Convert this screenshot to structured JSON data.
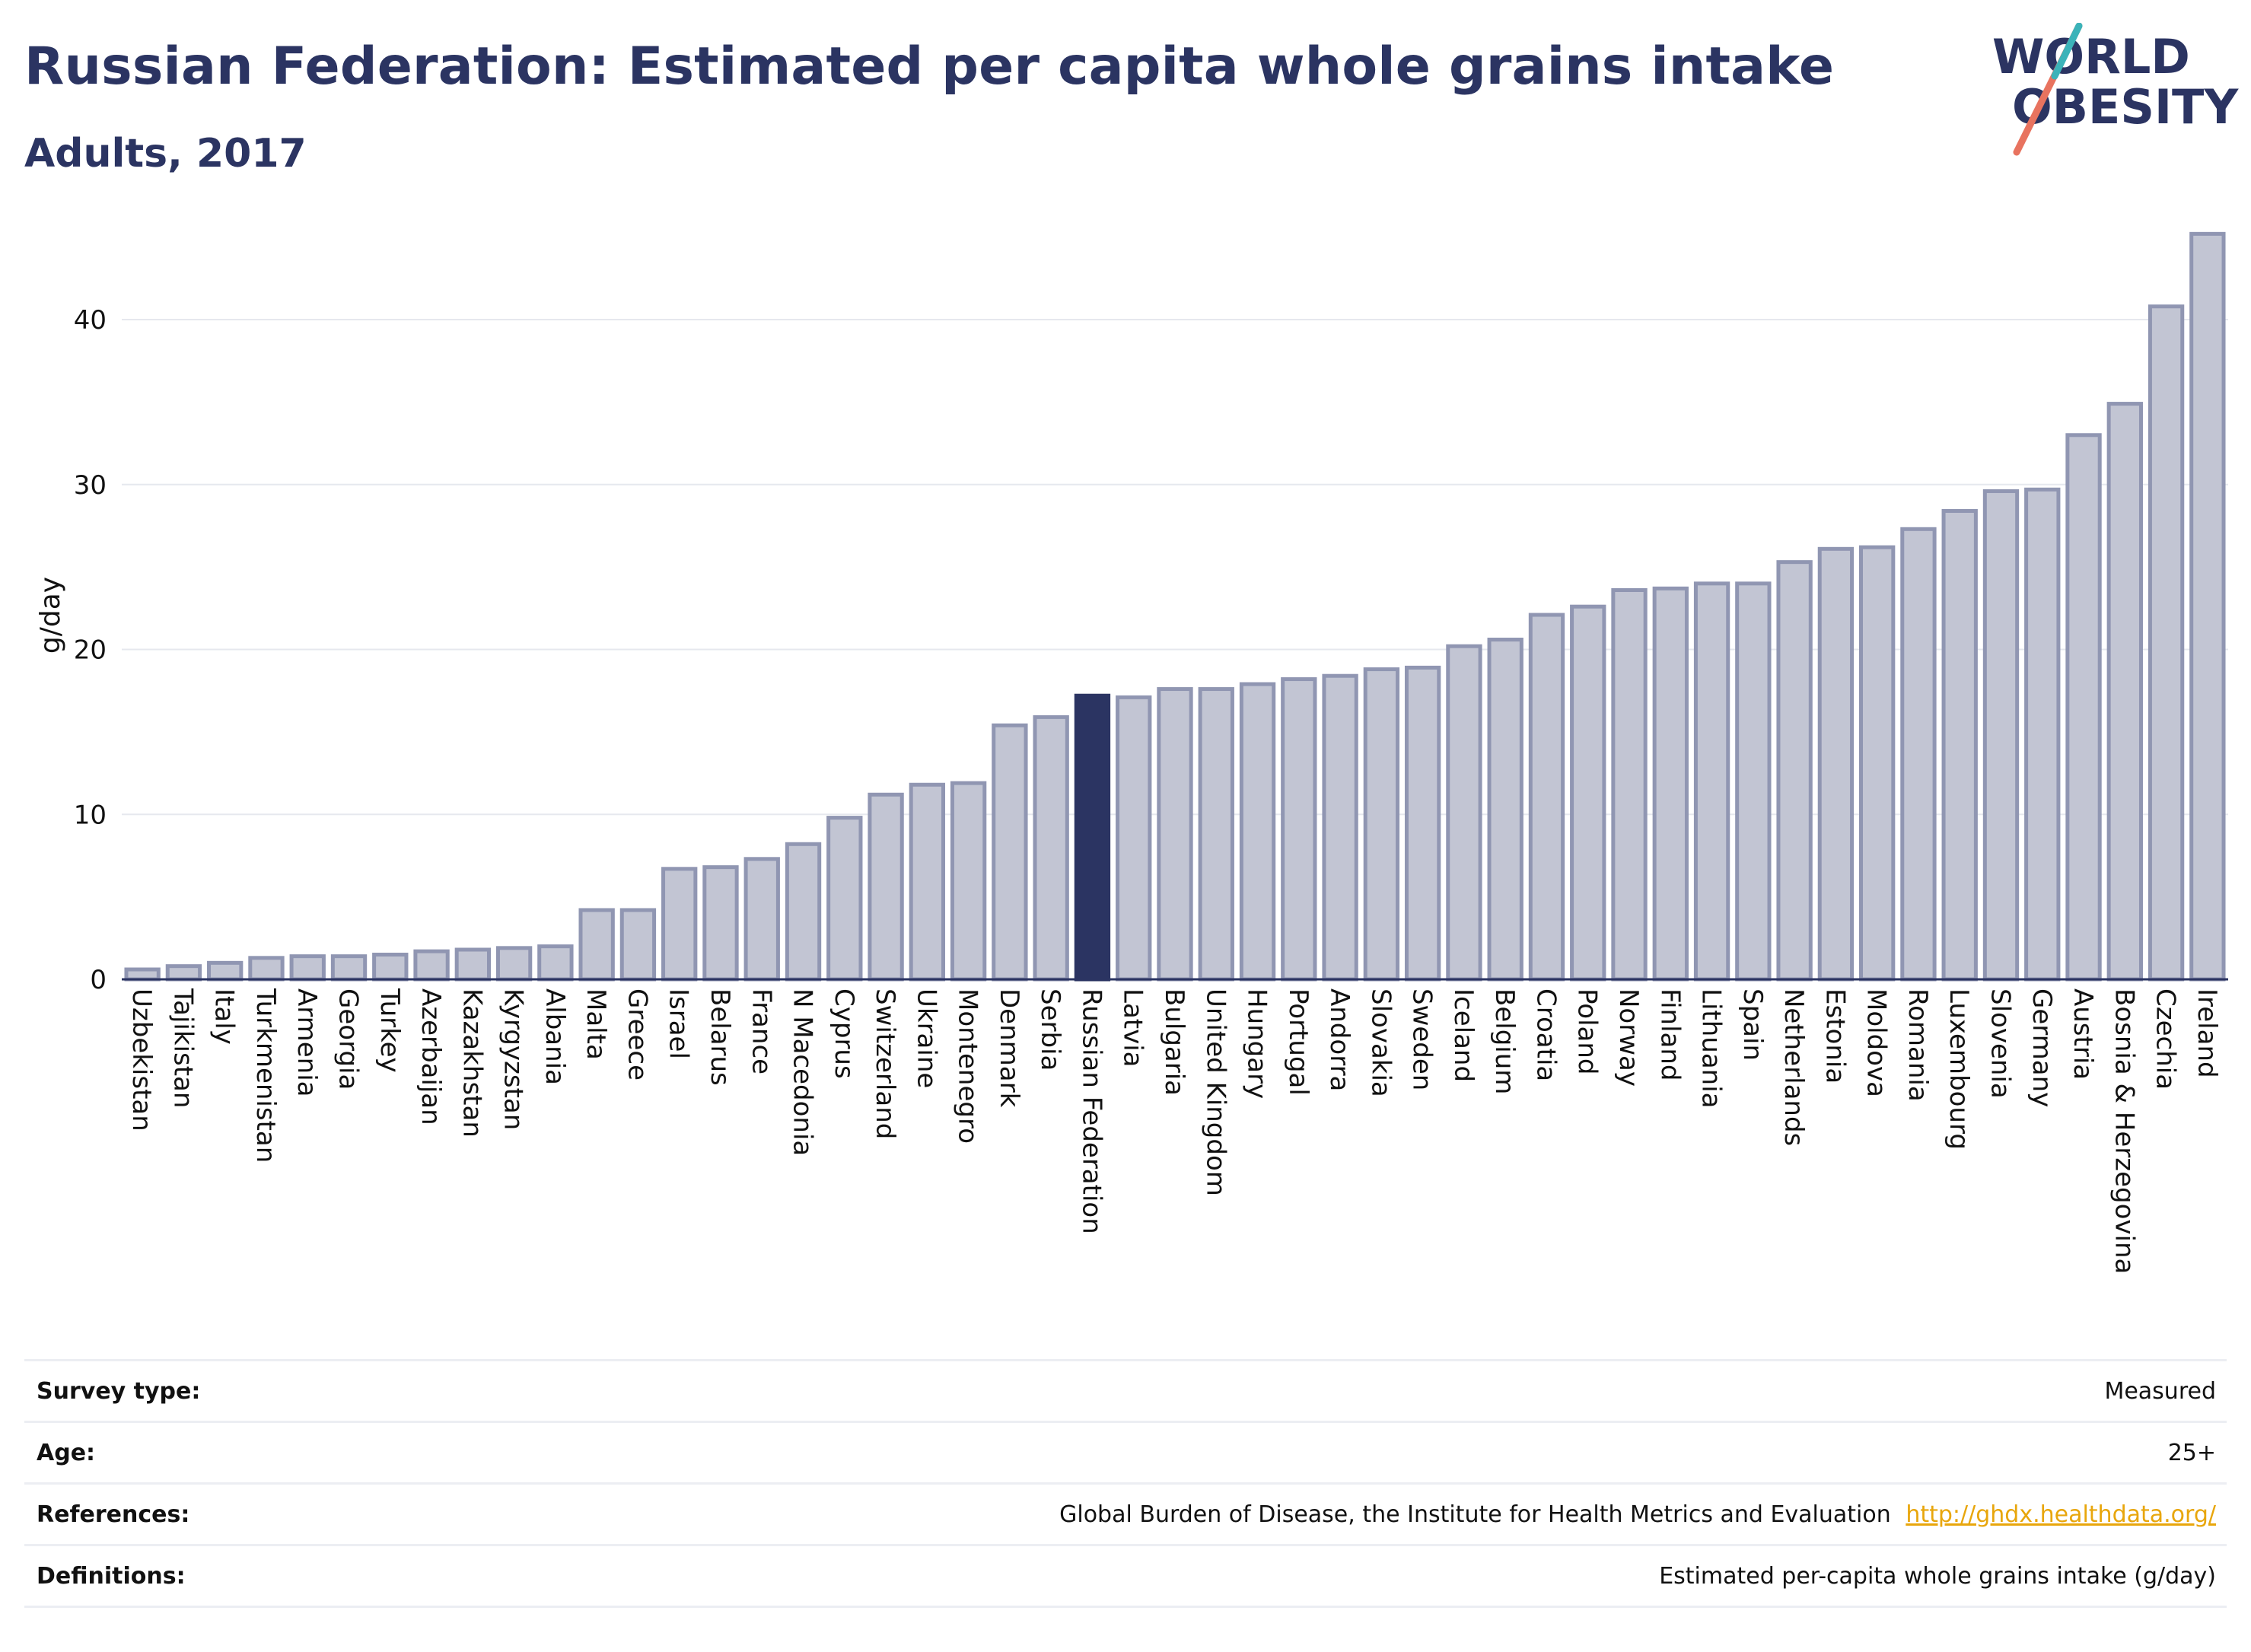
{
  "header": {
    "title": "Russian Federation: Estimated per capita whole grains intake",
    "subtitle": "Adults, 2017"
  },
  "logo": {
    "line1": "WORLD",
    "line2": "OBESITY"
  },
  "colors": {
    "bar_fill": "#c2c5d3",
    "bar_stroke": "#9096b2",
    "highlight_fill": "#2b3462",
    "text_dark": "#2b3462",
    "link": "#e8a60c",
    "logo_teal": "#3bb3b9",
    "logo_coral": "#e8735f"
  },
  "chart_data": {
    "type": "bar",
    "title": "Russian Federation: Estimated per capita whole grains intake",
    "subtitle": "Adults, 2017",
    "xlabel": "",
    "ylabel": "g/day",
    "ylim": [
      0,
      46
    ],
    "yticks": [
      0,
      10,
      20,
      30,
      40
    ],
    "grid": true,
    "highlight": "Russian Federation",
    "categories": [
      "Uzbekistan",
      "Tajikistan",
      "Italy",
      "Turkmenistan",
      "Armenia",
      "Georgia",
      "Turkey",
      "Azerbaijan",
      "Kazakhstan",
      "Kyrgyzstan",
      "Albania",
      "Malta",
      "Greece",
      "Israel",
      "Belarus",
      "France",
      "N Macedonia",
      "Cyprus",
      "Switzerland",
      "Ukraine",
      "Montenegro",
      "Denmark",
      "Serbia",
      "Russian Federation",
      "Latvia",
      "Bulgaria",
      "United Kingdom",
      "Hungary",
      "Portugal",
      "Andorra",
      "Slovakia",
      "Sweden",
      "Iceland",
      "Belgium",
      "Croatia",
      "Poland",
      "Norway",
      "Finland",
      "Lithuania",
      "Spain",
      "Netherlands",
      "Estonia",
      "Moldova",
      "Romania",
      "Luxembourg",
      "Slovenia",
      "Germany",
      "Austria",
      "Bosnia & Herzegovina",
      "Czechia",
      "Ireland"
    ],
    "values": [
      0.6,
      0.8,
      1.0,
      1.3,
      1.4,
      1.4,
      1.5,
      1.7,
      1.8,
      1.9,
      2.0,
      4.2,
      4.2,
      6.7,
      6.8,
      7.3,
      8.2,
      9.8,
      11.2,
      11.8,
      11.9,
      15.4,
      15.9,
      17.2,
      17.1,
      17.6,
      17.6,
      17.9,
      18.2,
      18.4,
      18.8,
      18.9,
      20.2,
      20.6,
      22.1,
      22.6,
      23.6,
      23.7,
      24.0,
      24.0,
      25.3,
      26.1,
      26.2,
      27.3,
      28.4,
      29.6,
      29.7,
      33.0,
      34.9,
      40.8,
      45.2
    ]
  },
  "meta": {
    "survey_type": {
      "label": "Survey type:",
      "value": "Measured"
    },
    "age": {
      "label": "Age:",
      "value": "25+"
    },
    "references": {
      "label": "References:",
      "value": "Global Burden of Disease, the Institute for Health Metrics and Evaluation",
      "link": "http://ghdx.healthdata.org/"
    },
    "definitions": {
      "label": "Definitions:",
      "value": "Estimated per-capita whole grains intake (g/day)"
    }
  }
}
